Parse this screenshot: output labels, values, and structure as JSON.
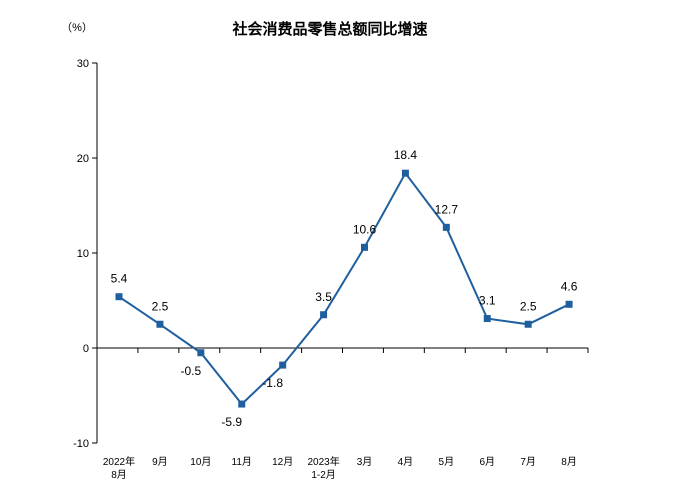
{
  "chart_data": {
    "type": "line",
    "title": "社会消费品零售总额同比增速",
    "unit_label": "（%）",
    "xlabel": "",
    "ylabel": "",
    "ylim": [
      -10,
      30
    ],
    "yticks": [
      -10,
      0,
      10,
      20,
      30
    ],
    "grid": false,
    "legend": "none",
    "categories": [
      [
        "2022年",
        "8月"
      ],
      [
        "9月"
      ],
      [
        "10月"
      ],
      [
        "11月"
      ],
      [
        "12月"
      ],
      [
        "2023年",
        "1-2月"
      ],
      [
        "3月"
      ],
      [
        "4月"
      ],
      [
        "5月"
      ],
      [
        "6月"
      ],
      [
        "7月"
      ],
      [
        "8月"
      ]
    ],
    "values": [
      5.4,
      2.5,
      -0.5,
      -5.9,
      -1.8,
      3.5,
      10.6,
      18.4,
      12.7,
      3.1,
      2.5,
      4.6
    ],
    "data_labels": [
      "5.4",
      "2.5",
      "-0.5",
      "-5.9",
      "-1.8",
      "3.5",
      "10.6",
      "18.4",
      "12.7",
      "3.1",
      "2.5",
      "4.6"
    ],
    "colors": {
      "line": "#1f5f9e",
      "marker": "#1f5f9e",
      "axis": "#000000"
    }
  }
}
